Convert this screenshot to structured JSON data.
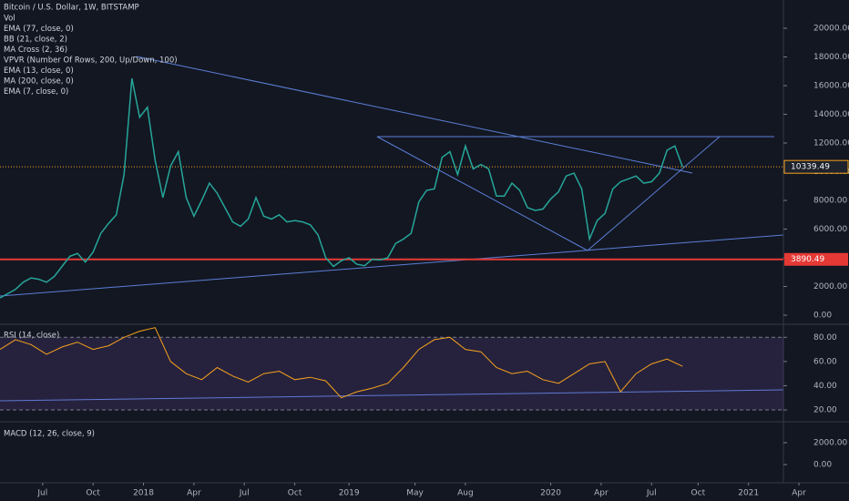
{
  "header": {
    "title": "Bitcoin / U.S. Dollar, 1W, BITSTAMP",
    "indicators": [
      "Vol",
      "EMA (77, close, 0)",
      "BB (21, close, 2)",
      "MA Cross (2, 36)",
      "VPVR (Number Of Rows, 200, Up/Down, 100)",
      "EMA (13, close, 0)",
      "MA (200, close, 0)",
      "EMA (7, close, 0)"
    ]
  },
  "chart_data": [
    {
      "type": "line",
      "color": "#26a69a",
      "x": [
        0,
        2,
        4,
        6,
        8,
        10,
        12,
        14,
        16,
        18,
        20,
        22,
        24,
        26,
        28,
        30,
        32,
        34,
        36,
        38,
        40,
        42,
        44,
        46,
        48,
        50,
        52,
        54,
        56,
        58,
        60,
        62,
        64,
        66,
        68,
        70,
        72,
        74,
        76,
        78,
        80,
        82,
        84,
        86,
        88,
        90,
        92,
        94,
        96,
        98,
        100,
        102,
        104,
        106,
        108,
        110,
        112,
        114,
        116,
        118,
        120,
        122,
        124,
        126,
        128,
        130,
        132,
        134,
        136,
        138,
        140,
        142,
        144,
        146,
        148,
        150,
        152,
        154,
        156,
        158,
        160,
        162,
        164,
        166,
        168,
        170,
        172,
        174,
        176
      ],
      "values": [
        1200,
        1500,
        1800,
        2300,
        2600,
        2500,
        2300,
        2700,
        3400,
        4100,
        4300,
        3700,
        4400,
        5700,
        6400,
        7000,
        9800,
        16500,
        13800,
        14500,
        10800,
        8200,
        10400,
        11400,
        8200,
        6900,
        8000,
        9200,
        8500,
        7500,
        6500,
        6200,
        6700,
        8200,
        6900,
        6700,
        7000,
        6500,
        6600,
        6500,
        6300,
        5600,
        4000,
        3400,
        3800,
        4000,
        3550,
        3450,
        3900,
        3850,
        4000,
        5000,
        5300,
        5700,
        7900,
        8700,
        8800,
        11000,
        11400,
        9800,
        11800,
        10200,
        10500,
        10200,
        8300,
        8300,
        9200,
        8700,
        7500,
        7300,
        7400,
        8100,
        8600,
        9700,
        9900,
        8800,
        5300,
        6600,
        7100,
        8800,
        9300,
        9500,
        9700,
        9200,
        9300,
        9900,
        11500,
        11800,
        10340
      ],
      "xlim": [
        0,
        202
      ],
      "ylim": [
        -570,
        21970
      ],
      "yticks": [
        {
          "value": 0,
          "label": "0.00"
        },
        {
          "value": 2000,
          "label": "2000.00"
        },
        {
          "value": 4000,
          "label": "4000.00"
        },
        {
          "value": 6000,
          "label": "6000.00"
        },
        {
          "value": 8000,
          "label": "8000.00"
        },
        {
          "value": 10000,
          "label": "10000.00"
        },
        {
          "value": 12000,
          "label": "12000.00"
        },
        {
          "value": 14000,
          "label": "14000.00"
        },
        {
          "value": 16000,
          "label": "16000.00"
        },
        {
          "value": 18000,
          "label": "18000.00"
        },
        {
          "value": 20000,
          "label": "20000.00"
        }
      ],
      "xticks": [
        {
          "value": 11,
          "label": "Jul"
        },
        {
          "value": 24,
          "label": "Oct"
        },
        {
          "value": 37,
          "label": "2018"
        },
        {
          "value": 50,
          "label": "Apr"
        },
        {
          "value": 63,
          "label": "Jul"
        },
        {
          "value": 76,
          "label": "Oct"
        },
        {
          "value": 90,
          "label": "2019"
        },
        {
          "value": 107,
          "label": "May"
        },
        {
          "value": 120,
          "label": "Aug"
        },
        {
          "value": 142,
          "label": "2020"
        },
        {
          "value": 155,
          "label": "Apr"
        },
        {
          "value": 168,
          "label": "Jul"
        },
        {
          "value": 180,
          "label": "Oct"
        },
        {
          "value": 193,
          "label": "2021"
        },
        {
          "value": 206,
          "label": "Apr"
        }
      ],
      "price_lines": [
        10339.49,
        3890.49
      ],
      "price_line_colors": [
        "#f7a21b",
        "#e53935"
      ]
    },
    {
      "type": "line",
      "title": "RSI (14, close)",
      "color": "#f7a21b",
      "x": [
        0,
        4,
        8,
        12,
        16,
        20,
        24,
        28,
        32,
        36,
        40,
        44,
        48,
        52,
        56,
        60,
        64,
        68,
        72,
        76,
        80,
        84,
        88,
        92,
        96,
        100,
        104,
        108,
        112,
        116,
        120,
        124,
        128,
        132,
        136,
        140,
        144,
        148,
        152,
        156,
        160,
        164,
        168,
        172,
        176
      ],
      "values": [
        70,
        78,
        74,
        66,
        72,
        76,
        70,
        73,
        80,
        85,
        88,
        60,
        50,
        45,
        55,
        48,
        43,
        50,
        52,
        45,
        47,
        44,
        30,
        35,
        38,
        42,
        55,
        70,
        78,
        80,
        70,
        68,
        55,
        50,
        52,
        45,
        42,
        50,
        58,
        60,
        35,
        50,
        58,
        62,
        56
      ],
      "ylim": [
        11,
        90
      ],
      "yticks": [
        {
          "value": 20,
          "label": "20.00"
        },
        {
          "value": 40,
          "label": "40.00"
        },
        {
          "value": 60,
          "label": "60.00"
        },
        {
          "value": 80,
          "label": "80.00"
        }
      ]
    },
    {
      "type": "macd",
      "title": "MACD (12, 26, close, 9)",
      "ylim": [
        -1500,
        3750
      ],
      "yticks": [
        {
          "value": 0,
          "label": "0.00"
        },
        {
          "value": 2000,
          "label": "2000.00"
        }
      ]
    }
  ]
}
